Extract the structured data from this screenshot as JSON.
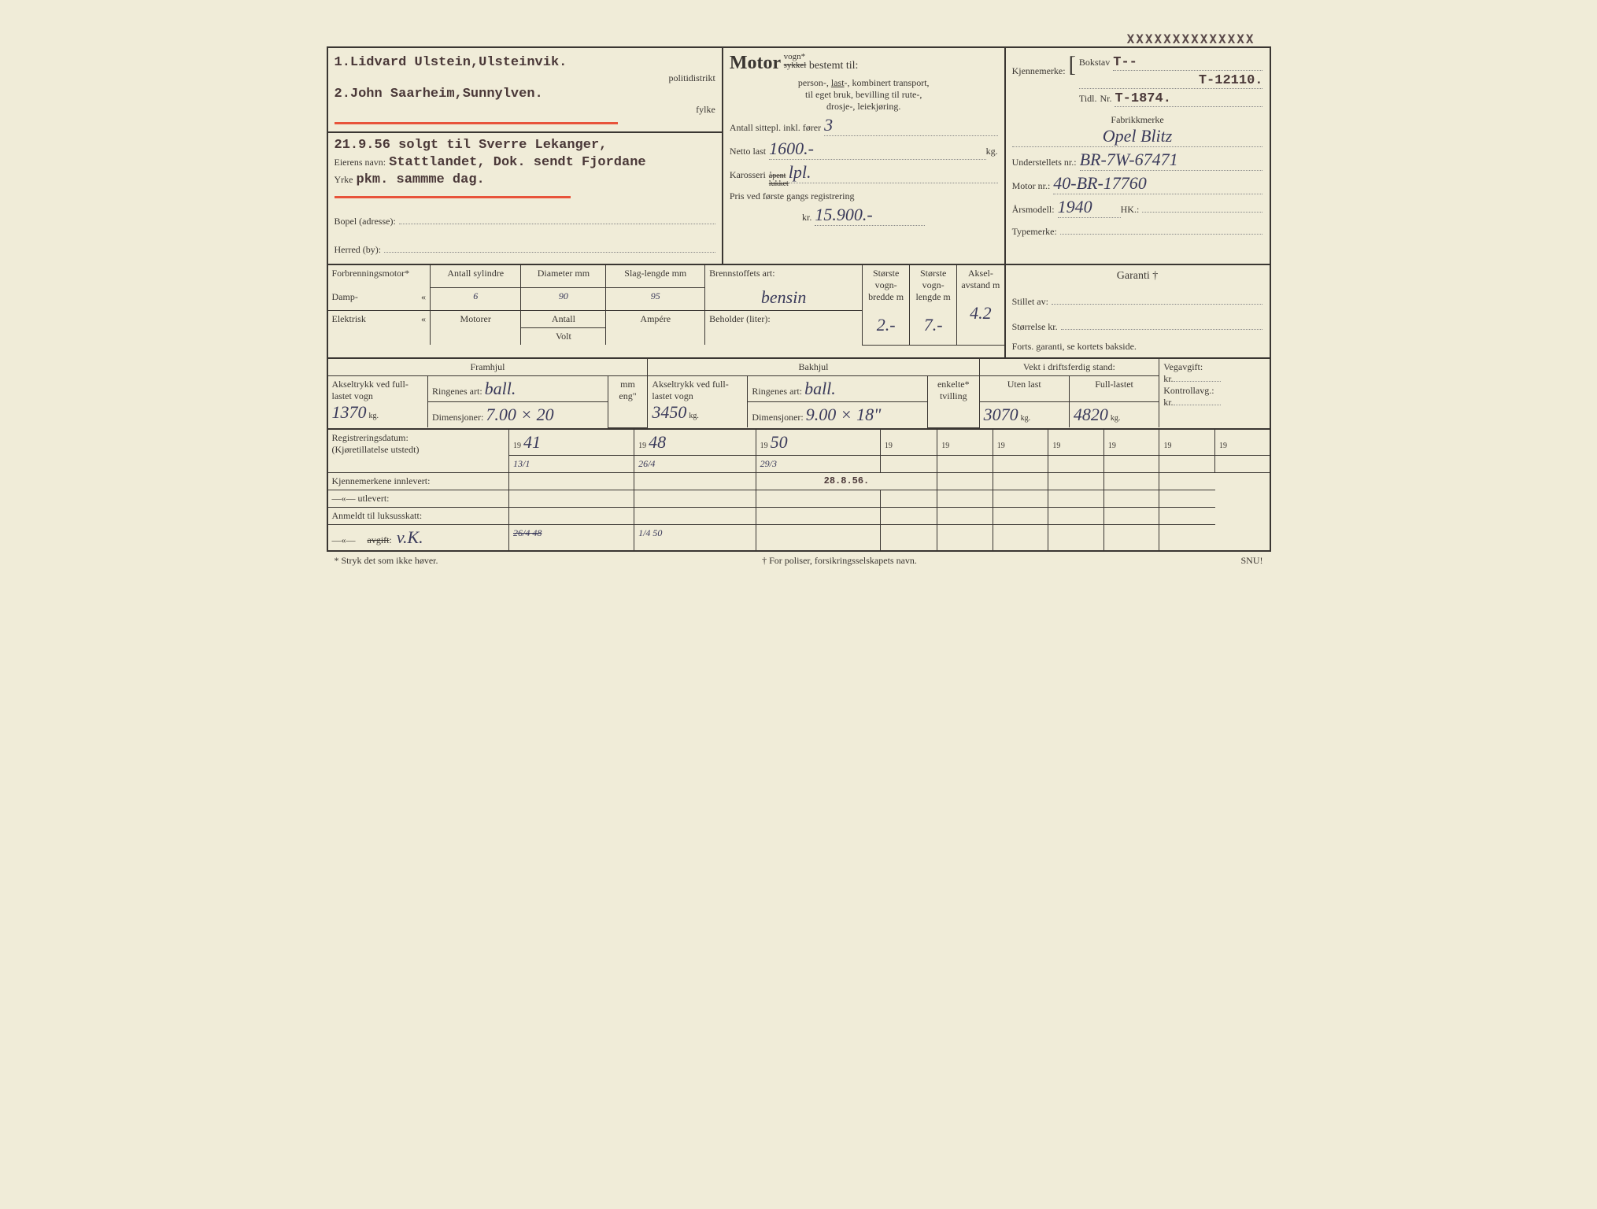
{
  "stamp_top": "XXXXXXXXXXXXXX",
  "owner": {
    "line1": "1.Lidvard Ulstein,Ulsteinvik.",
    "line2": "2.John Saarheim,Sunnylven.",
    "politidistrikt_label": "politidistrikt",
    "fylke_label": "fylke",
    "sold_note": "21.9.56 solgt til Sverre Lekanger,",
    "eiers_navn_label": "Eierens navn:",
    "stattlandet": "Stattlandet, Dok. sendt Fjordane",
    "yrke_label": "Yrke",
    "yrke_value": "pkm. sammme dag.",
    "bopel_label": "Bopel (adresse):",
    "herred_label": "Herred (by):"
  },
  "motor": {
    "heading": "Motor",
    "vogn": "vogn*",
    "sykkel": "sykkel",
    "bestemt": " bestemt til:",
    "transport": "person-, last-, kombinert transport,",
    "last_underline": "last",
    "bruk": "til eget bruk, bevilling til rute-,",
    "drosje": "drosje-, leiekjøring.",
    "sittepl_label": "Antall sittepl. inkl. fører",
    "sittepl_value": "3",
    "netto_label": "Netto last",
    "netto_value": "1600.-",
    "netto_unit": "kg.",
    "karosseri_label": "Karosseri",
    "apent": "åpent",
    "lukket": "lukket",
    "karosseri_value": "lpl.",
    "pris_label": "Pris ved første gangs registrering",
    "pris_kr": "kr.",
    "pris_value": "15.900.-"
  },
  "kjennemerke": {
    "label": "Kjennemerke:",
    "bokstav_label": "Bokstav",
    "bokstav_value": "T--",
    "nr_label": "Nr.",
    "nr_value": "T-12110.",
    "tidl_label": "Tidl.",
    "tidl_value": "T-1874.",
    "fabrikk_label": "Fabrikkmerke",
    "fabrikk_value": "Opel Blitz",
    "understell_label": "Understellets nr.:",
    "understell_value": "BR-7W-67471",
    "motornr_label": "Motor nr.:",
    "motornr_value": "40-BR-17760",
    "arsmodell_label": "Årsmodell:",
    "arsmodell_value": "1940",
    "hk_label": "HK.:",
    "typemerke_label": "Typemerke:"
  },
  "engine": {
    "forbrenning_label": "Forbrenningsmotor*",
    "damp_label": "Damp-",
    "elektrisk_label": "Elektrisk",
    "quote": "«",
    "sylindre_label": "Antall sylindre",
    "sylindre_value": "6",
    "diameter_label": "Diameter mm",
    "diameter_value": "90",
    "slag_label": "Slag-lengde mm",
    "slag_value": "95",
    "motorer_label": "Motorer",
    "antall_label": "Antall",
    "volt_label": "Volt",
    "ampere_label": "Ampére",
    "brennstoff_label": "Brennstoffets art:",
    "brennstoff_value": "bensin",
    "beholder_label": "Beholder (liter):",
    "bredde_label": "Største vogn-bredde m",
    "bredde_value": "2.-",
    "lengde_label": "Største vogn-lengde m",
    "lengde_value": "7.-",
    "aksel_label": "Aksel-avstand m",
    "aksel_value": "4.2"
  },
  "garanti": {
    "label": "Garanti †",
    "stillet_label": "Stillet av:",
    "storrelse_label": "Størrelse kr.",
    "forts_label": "Forts. garanti, se kortets bakside."
  },
  "wheels": {
    "framhjul_label": "Framhjul",
    "bakhjul_label": "Bakhjul",
    "akseltrykk_label": "Akseltrykk ved full-lastet vogn",
    "akseltrykk_front": "1370",
    "akseltrykk_front_unit": "kg.",
    "akseltrykk_back": "3450",
    "akseltrykk_back_unit": "kg.",
    "ringenes_label": "Ringenes art:",
    "ringenes_front": "ball.",
    "ringenes_back": "ball.",
    "enkelte_label": "enkelte*",
    "tvilling_label": "tvilling",
    "dimensjoner_label": "Dimensjoner:",
    "dim_front": "7.00 × 20",
    "dim_back": "9.00 × 18\"",
    "mm_label": "mm",
    "eng_label": "eng\""
  },
  "vekt": {
    "label": "Vekt i driftsferdig stand:",
    "uten_label": "Uten last",
    "uten_value": "3070",
    "full_label": "Full-lastet",
    "full_value": "4820",
    "kg": "kg."
  },
  "avgift": {
    "veg_label": "Vegavgift:",
    "kontroll_label": "Kontrollavg.:",
    "kr": "kr."
  },
  "registration": {
    "reg_label": "Registreringsdatum:",
    "kjor_label": "(Kjøretillatelse utstedt)",
    "years": [
      "41",
      "48",
      "50",
      "",
      "",
      "",
      "",
      "",
      "",
      ""
    ],
    "dates": [
      "13/1",
      "26/4",
      "29/3",
      "",
      "",
      "",
      "",
      "",
      "",
      ""
    ],
    "year_prefix": "19",
    "kjenne_innlevert_label": "Kjennemerkene innlevert:",
    "kjenne_innlevert_value": "28.8.56.",
    "utlevert_label": "—«—        utlevert:",
    "anmeldt_label": "Anmeldt til luksusskatt:",
    "avgift_label": "—«—      avgift:",
    "avgift_strike": "avgift",
    "avgift_value": "v.K.",
    "avgift_date1": "26/4 48",
    "avgift_date2": "1/4 50"
  },
  "footer": {
    "stryk": "* Stryk det som ikke høver.",
    "poliser": "† For poliser, forsikringsselskapets navn.",
    "snu": "SNU!"
  }
}
